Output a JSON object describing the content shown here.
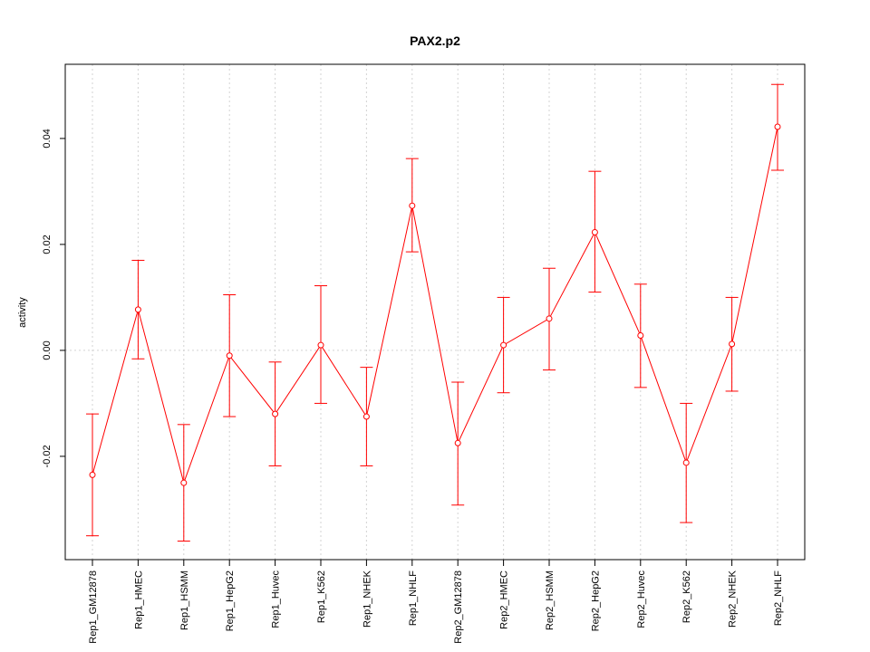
{
  "chart_data": {
    "type": "line",
    "title": "PAX2.p2",
    "xlabel": "",
    "ylabel": "activity",
    "ylim": [
      -0.0395,
      0.054
    ],
    "yticks": [
      -0.02,
      0.0,
      0.02,
      0.04
    ],
    "ytick_labels": [
      "-0.02",
      "0.00",
      "0.02",
      "0.04"
    ],
    "grid": true,
    "error_bars": true,
    "color": "#ff0000",
    "grid_color": "#d3d3d3",
    "categories": [
      "Rep1_GM12878",
      "Rep1_HMEC",
      "Rep1_HSMM",
      "Rep1_HepG2",
      "Rep1_Huvec",
      "Rep1_K562",
      "Rep1_NHEK",
      "Rep1_NHLF",
      "Rep2_GM12878",
      "Rep2_HMEC",
      "Rep2_HSMM",
      "Rep2_HepG2",
      "Rep2_Huvec",
      "Rep2_K562",
      "Rep2_NHEK",
      "Rep2_NHLF"
    ],
    "values": [
      -0.0235,
      0.0077,
      -0.025,
      -0.001,
      -0.012,
      0.001,
      -0.0125,
      0.0273,
      -0.0175,
      0.001,
      0.006,
      0.0223,
      0.0028,
      -0.0212,
      0.0012,
      0.0422
    ],
    "upper": [
      -0.012,
      0.017,
      -0.014,
      0.0105,
      -0.0022,
      0.0122,
      -0.0032,
      0.0362,
      -0.006,
      0.01,
      0.0155,
      0.0338,
      0.0125,
      -0.01,
      0.01,
      0.0502
    ],
    "lower": [
      -0.035,
      -0.0016,
      -0.036,
      -0.0125,
      -0.0218,
      -0.01,
      -0.0218,
      0.0186,
      -0.0292,
      -0.008,
      -0.0037,
      0.011,
      -0.007,
      -0.0325,
      -0.0077,
      0.034
    ]
  }
}
